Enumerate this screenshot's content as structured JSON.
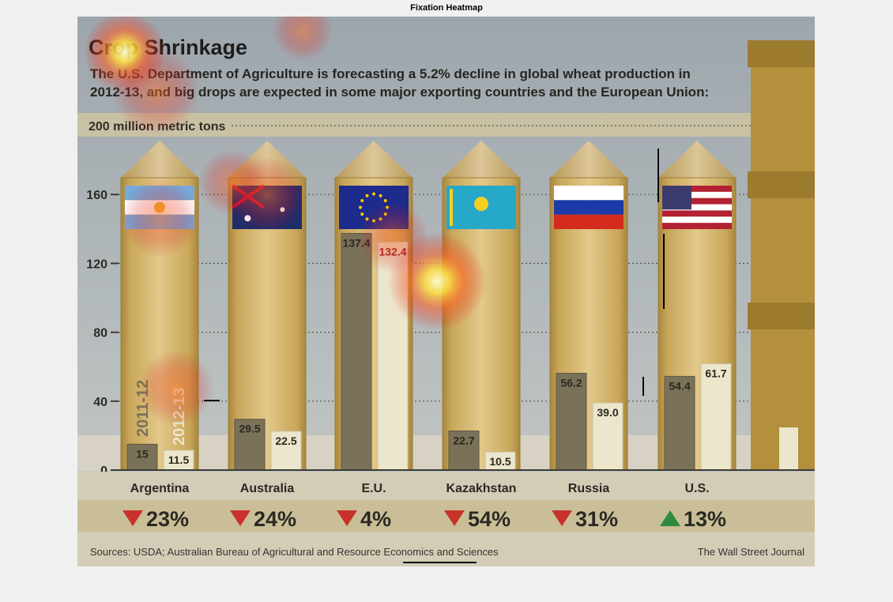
{
  "window": {
    "title": "Fixation Heatmap"
  },
  "chart_data": {
    "type": "bar",
    "title": "Crop Shrinkage",
    "subtitle": [
      "The U.S. Department of Agriculture is forecasting a 5.2% decline in global wheat production in",
      "2012-13, and big drops are expected in some major exporting countries and the European Union:"
    ],
    "top_label": "200 million metric tons",
    "yticks": [
      0,
      40,
      80,
      120,
      160
    ],
    "ylim": [
      0,
      200
    ],
    "grid": "dotted",
    "categories": [
      "Argentina",
      "Australia",
      "E.U.",
      "Kazakhstan",
      "Russia",
      "U.S."
    ],
    "series": [
      {
        "name": "2011-12",
        "values": [
          15,
          29.5,
          137.4,
          22.7,
          56.2,
          54.4
        ],
        "labels": [
          "15",
          "29.5",
          "137.4",
          "22.7",
          "56.2",
          "54.4"
        ],
        "color": "#7a7258"
      },
      {
        "name": "2012-13",
        "values": [
          11.5,
          22.5,
          132.4,
          10.5,
          39.0,
          61.7
        ],
        "labels": [
          "11.5",
          "22.5",
          "132.4",
          "10.5",
          "39.0",
          "61.7"
        ],
        "color": "#ece6cc"
      }
    ],
    "changes": [
      {
        "text": "23%",
        "direction": "down"
      },
      {
        "text": "24%",
        "direction": "down"
      },
      {
        "text": "4%",
        "direction": "down"
      },
      {
        "text": "54%",
        "direction": "down"
      },
      {
        "text": "31%",
        "direction": "down"
      },
      {
        "text": "13%",
        "direction": "up"
      }
    ],
    "colors": {
      "down": "#c8322a",
      "up": "#2e8b3e",
      "silo": "#c9a75a",
      "background": "#b9bfc3"
    },
    "source": "Sources: USDA; Australian Bureau of Agricultural and Resource Economics and Sciences",
    "credit": "The Wall Street Journal",
    "heatmap_overlay": true
  }
}
